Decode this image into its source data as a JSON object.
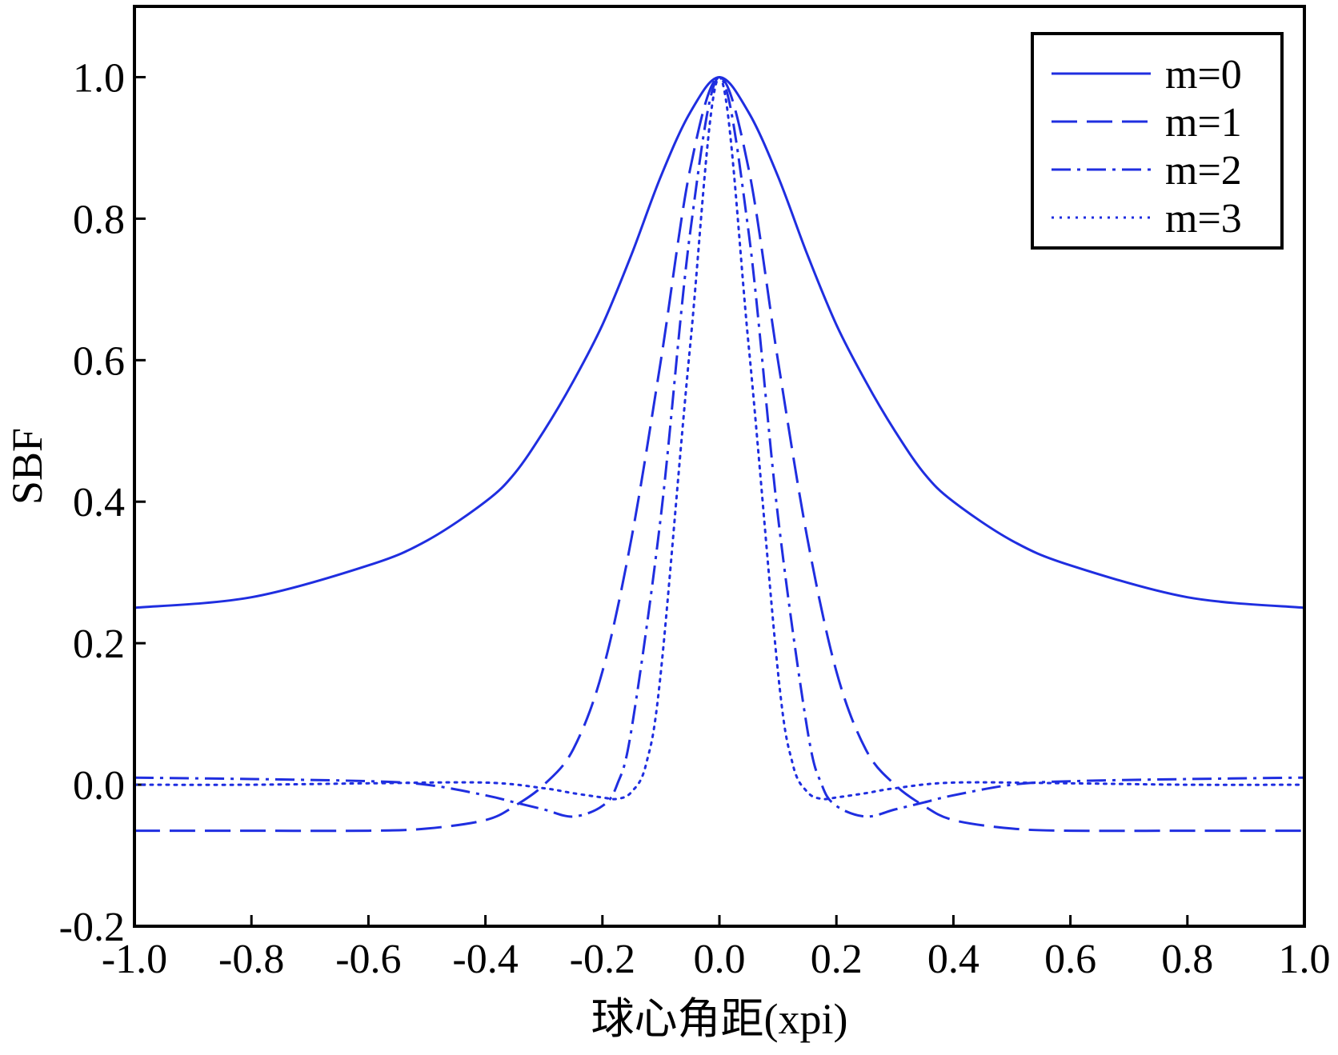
{
  "chart_data": {
    "type": "line",
    "title": "",
    "xlabel": "球心角距(xpi)",
    "ylabel": "SBF",
    "xlim": [
      -1.0,
      1.0
    ],
    "ylim": [
      -0.2,
      1.1
    ],
    "x_ticks": [
      -1.0,
      -0.8,
      -0.6,
      -0.4,
      -0.2,
      0.0,
      0.2,
      0.4,
      0.6,
      0.8,
      1.0
    ],
    "x_tick_labels": [
      "-1.0",
      "-0.8",
      "-0.6",
      "-0.4",
      "-0.2",
      "0.0",
      "0.2",
      "0.4",
      "0.6",
      "0.8",
      "1.0"
    ],
    "y_ticks": [
      -0.2,
      0.0,
      0.2,
      0.4,
      0.6,
      0.8,
      1.0
    ],
    "y_tick_labels": [
      "-0.2",
      "0.0",
      "0.2",
      "0.4",
      "0.6",
      "0.8",
      "1.0"
    ],
    "grid": false,
    "legend_position": "top-right",
    "line_color": "#1f2ee0",
    "series": [
      {
        "name": "m=0",
        "style": "solid",
        "x": [
          -1.0,
          -0.8,
          -0.6,
          -0.5,
          -0.4,
          -0.35,
          -0.3,
          -0.25,
          -0.2,
          -0.15,
          -0.1,
          -0.05,
          0.0,
          0.05,
          0.1,
          0.15,
          0.2,
          0.25,
          0.3,
          0.35,
          0.4,
          0.5,
          0.6,
          0.8,
          1.0
        ],
        "y": [
          0.25,
          0.265,
          0.31,
          0.345,
          0.4,
          0.44,
          0.5,
          0.57,
          0.65,
          0.75,
          0.86,
          0.95,
          1.0,
          0.95,
          0.86,
          0.75,
          0.65,
          0.57,
          0.5,
          0.44,
          0.4,
          0.345,
          0.31,
          0.265,
          0.25
        ]
      },
      {
        "name": "m=1",
        "style": "dashed",
        "x": [
          -1.0,
          -0.8,
          -0.6,
          -0.5,
          -0.4,
          -0.35,
          -0.3,
          -0.25,
          -0.2,
          -0.15,
          -0.1,
          -0.05,
          0.0,
          0.05,
          0.1,
          0.15,
          0.2,
          0.25,
          0.3,
          0.35,
          0.4,
          0.5,
          0.6,
          0.8,
          1.0
        ],
        "y": [
          -0.065,
          -0.065,
          -0.065,
          -0.062,
          -0.05,
          -0.03,
          0.0,
          0.05,
          0.16,
          0.35,
          0.6,
          0.87,
          1.0,
          0.87,
          0.6,
          0.35,
          0.16,
          0.05,
          0.0,
          -0.03,
          -0.05,
          -0.062,
          -0.065,
          -0.065,
          -0.065
        ]
      },
      {
        "name": "m=2",
        "style": "dashdot",
        "x": [
          -1.0,
          -0.8,
          -0.6,
          -0.5,
          -0.4,
          -0.35,
          -0.3,
          -0.25,
          -0.2,
          -0.175,
          -0.15,
          -0.1,
          -0.05,
          0.0,
          0.05,
          0.1,
          0.15,
          0.175,
          0.2,
          0.25,
          0.3,
          0.35,
          0.4,
          0.5,
          0.6,
          0.8,
          1.0
        ],
        "y": [
          0.01,
          0.008,
          0.005,
          0.0,
          -0.015,
          -0.025,
          -0.035,
          -0.045,
          -0.03,
          0.0,
          0.08,
          0.38,
          0.78,
          1.0,
          0.78,
          0.38,
          0.08,
          0.0,
          -0.03,
          -0.045,
          -0.035,
          -0.025,
          -0.015,
          0.0,
          0.005,
          0.008,
          0.01
        ]
      },
      {
        "name": "m=3",
        "style": "dotted",
        "x": [
          -1.0,
          -0.8,
          -0.6,
          -0.4,
          -0.3,
          -0.25,
          -0.2,
          -0.175,
          -0.15,
          -0.125,
          -0.1,
          -0.05,
          0.0,
          0.05,
          0.1,
          0.125,
          0.15,
          0.175,
          0.2,
          0.25,
          0.3,
          0.4,
          0.6,
          0.8,
          1.0
        ],
        "y": [
          0.0,
          0.0,
          0.002,
          0.003,
          -0.005,
          -0.012,
          -0.018,
          -0.02,
          -0.01,
          0.03,
          0.16,
          0.62,
          1.0,
          0.62,
          0.16,
          0.03,
          -0.01,
          -0.02,
          -0.018,
          -0.012,
          -0.005,
          0.003,
          0.002,
          0.0,
          0.0
        ]
      }
    ]
  }
}
